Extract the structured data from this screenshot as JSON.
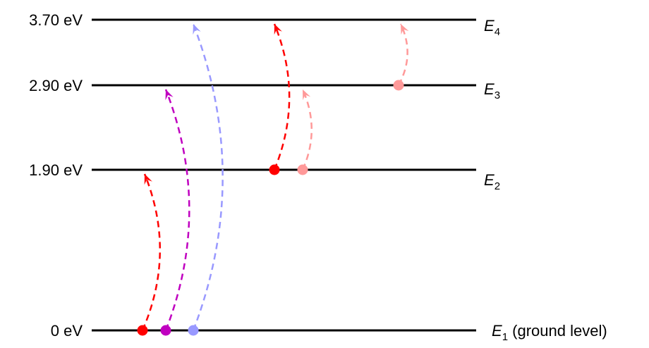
{
  "levels": [
    {
      "name": "E",
      "subscript": "4",
      "suffix": "",
      "energy": 3.7,
      "energy_label": "3.70 eV"
    },
    {
      "name": "E",
      "subscript": "3",
      "suffix": "",
      "energy": 2.9,
      "energy_label": "2.90 eV"
    },
    {
      "name": "E",
      "subscript": "2",
      "suffix": "",
      "energy": 1.9,
      "energy_label": "1.90 eV"
    },
    {
      "name": "E",
      "subscript": "1",
      "suffix": " (ground level)",
      "energy": 0,
      "energy_label": "0 eV"
    }
  ],
  "transitions": [
    {
      "from": 0,
      "to": 1.9,
      "color": "#ff0000"
    },
    {
      "from": 0,
      "to": 2.9,
      "color": "#c000c0"
    },
    {
      "from": 0,
      "to": 3.7,
      "color": "#9999ff"
    },
    {
      "from": 1.9,
      "to": 3.7,
      "color": "#ff0000"
    },
    {
      "from": 1.9,
      "to": 2.9,
      "color": "#ff9999"
    },
    {
      "from": 2.9,
      "to": 3.7,
      "color": "#ff9999"
    }
  ]
}
